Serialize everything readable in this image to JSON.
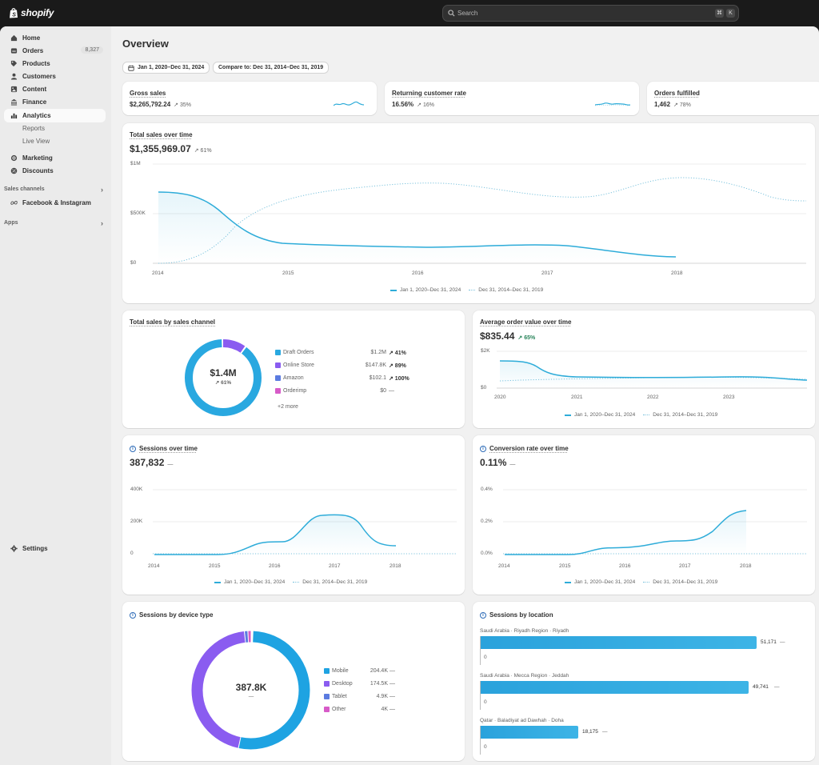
{
  "topbar": {
    "brand": "shopify",
    "search_placeholder": "Search",
    "shortcut_keys": [
      "⌘",
      "K"
    ]
  },
  "sidebar": {
    "items": [
      {
        "label": "Home",
        "icon": "home-icon"
      },
      {
        "label": "Orders",
        "icon": "orders-icon",
        "badge": "8,327"
      },
      {
        "label": "Products",
        "icon": "tag-icon"
      },
      {
        "label": "Customers",
        "icon": "person-icon"
      },
      {
        "label": "Content",
        "icon": "content-icon"
      },
      {
        "label": "Finance",
        "icon": "bank-icon"
      },
      {
        "label": "Analytics",
        "icon": "bar-chart-icon",
        "active": true
      },
      {
        "label": "Reports",
        "sub": true
      },
      {
        "label": "Live View",
        "sub": true
      },
      {
        "label": "Marketing",
        "icon": "target-icon"
      },
      {
        "label": "Discounts",
        "icon": "discount-icon"
      }
    ],
    "sales_channels_label": "Sales channels",
    "channel_item": "Facebook & Instagram",
    "apps_label": "Apps",
    "settings_label": "Settings"
  },
  "page": {
    "title": "Overview",
    "date_range": "Jan 1, 2020–Dec 31, 2024",
    "compare": "Compare to: Dec 31, 2014–Dec 31, 2019"
  },
  "kpis": [
    {
      "label": "Gross sales",
      "value": "$2,265,792.24",
      "change": "↗ 35%"
    },
    {
      "label": "Returning customer rate",
      "value": "16.56%",
      "change": "↗ 16%"
    },
    {
      "label": "Orders fulfilled",
      "value": "1,462",
      "change": "↗ 78%"
    }
  ],
  "total_sales": {
    "title": "Total sales over time",
    "value": "$1,355,969.07",
    "change": "↗ 61%",
    "y_ticks": [
      "$1M",
      "$500K",
      "$0"
    ],
    "x_ticks": [
      "2014",
      "2015",
      "2016",
      "2017",
      "2018"
    ]
  },
  "legend": {
    "current": "Jan 1, 2020–Dec 31, 2024",
    "previous": "Dec 31, 2014–Dec 31, 2019"
  },
  "sales_by_channel": {
    "title": "Total sales by sales channel",
    "center_value": "$1.4M",
    "center_change": "↗ 61%",
    "items": [
      {
        "name": "Draft Orders",
        "value": "$1.2M",
        "change": "↗ 41%",
        "color": "#29a8e0"
      },
      {
        "name": "Online Store",
        "value": "$147.8K",
        "change": "↗ 89%",
        "color": "#8a5cf0"
      },
      {
        "name": "Amazon",
        "value": "$102.1",
        "change": "↗ 100%",
        "color": "#5b7be0"
      },
      {
        "name": "Orderimp",
        "value": "$0",
        "change": "—",
        "color": "#d75bc8"
      }
    ],
    "more": "+2 more"
  },
  "aov": {
    "title": "Average order value over time",
    "value": "$835.44",
    "change": "↗ 65%",
    "y_ticks": [
      "$2K",
      "$0"
    ],
    "x_ticks": [
      "2020",
      "2021",
      "2022",
      "2023"
    ]
  },
  "sessions": {
    "title": "Sessions over time",
    "value": "387,832",
    "change": "—",
    "y_ticks": [
      "400K",
      "200K",
      "0"
    ],
    "x_ticks": [
      "2014",
      "2015",
      "2016",
      "2017",
      "2018"
    ]
  },
  "conversion": {
    "title": "Conversion rate over time",
    "value": "0.11%",
    "change": "—",
    "y_ticks": [
      "0.4%",
      "0.2%",
      "0.0%"
    ],
    "x_ticks": [
      "2014",
      "2015",
      "2016",
      "2017",
      "2018"
    ]
  },
  "device": {
    "title": "Sessions by device type",
    "center_value": "387.8K",
    "center_change": "—",
    "items": [
      {
        "name": "Mobile",
        "value": "204.4K",
        "change": "—",
        "color": "#1ea3e2"
      },
      {
        "name": "Desktop",
        "value": "174.5K",
        "change": "—",
        "color": "#8a5cf0"
      },
      {
        "name": "Tablet",
        "value": "4.9K",
        "change": "—",
        "color": "#5b7be0"
      },
      {
        "name": "Other",
        "value": "4K",
        "change": "—",
        "color": "#d75bc8"
      }
    ]
  },
  "location": {
    "title": "Sessions by location",
    "rows": [
      {
        "name": "Saudi Arabia · Riyadh Region · Riyadh",
        "value": "51,171",
        "change": "—",
        "prev": "0",
        "fraction": 1.0
      },
      {
        "name": "Saudi Arabia · Mecca Region · Jeddah",
        "value": "49,741",
        "change": "—",
        "prev": "0",
        "fraction": 0.972
      },
      {
        "name": "Qatar · Baladiyat ad Dawhah · Doha",
        "value": "18,175",
        "change": "—",
        "prev": "0",
        "fraction": 0.355
      }
    ]
  }
}
